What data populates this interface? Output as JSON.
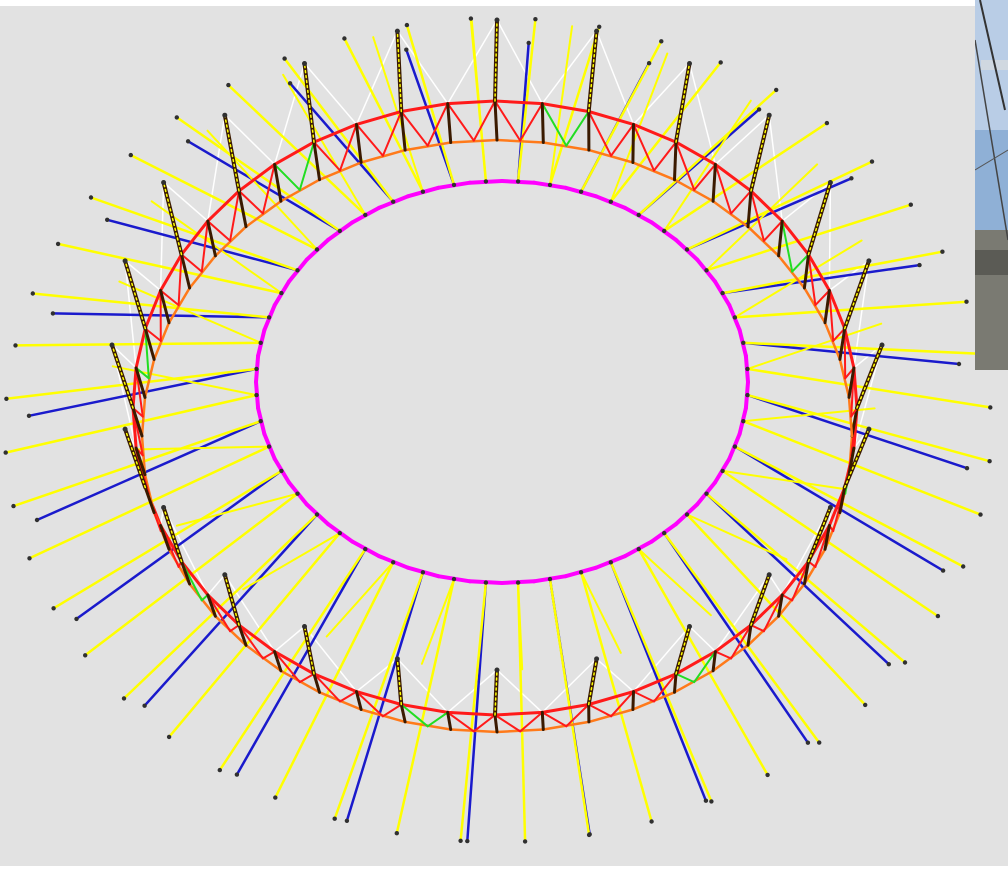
{
  "diagram": {
    "kind": "3d-ring-cable-truss-model",
    "background_color": "#e2e2e2",
    "member_colors": {
      "outer_ring_top": "#ff1a1a",
      "outer_ring_bottom": "#ff7a1a",
      "inner_tension_ring": "#ff00ff",
      "upper_radial_cable": "#ffff00",
      "lower_radial_cable": "#1a1acc",
      "ring_diagonal": "#22dd22",
      "mast_strut": "#3a1a00",
      "mast_tie": "#ffffff",
      "node": "#303030"
    },
    "radial_segments": 48,
    "inset_photo": {
      "subject": "stadium-roof-photo",
      "sky_color": "#8fb0d6",
      "building_color": "#7a7a72"
    }
  }
}
